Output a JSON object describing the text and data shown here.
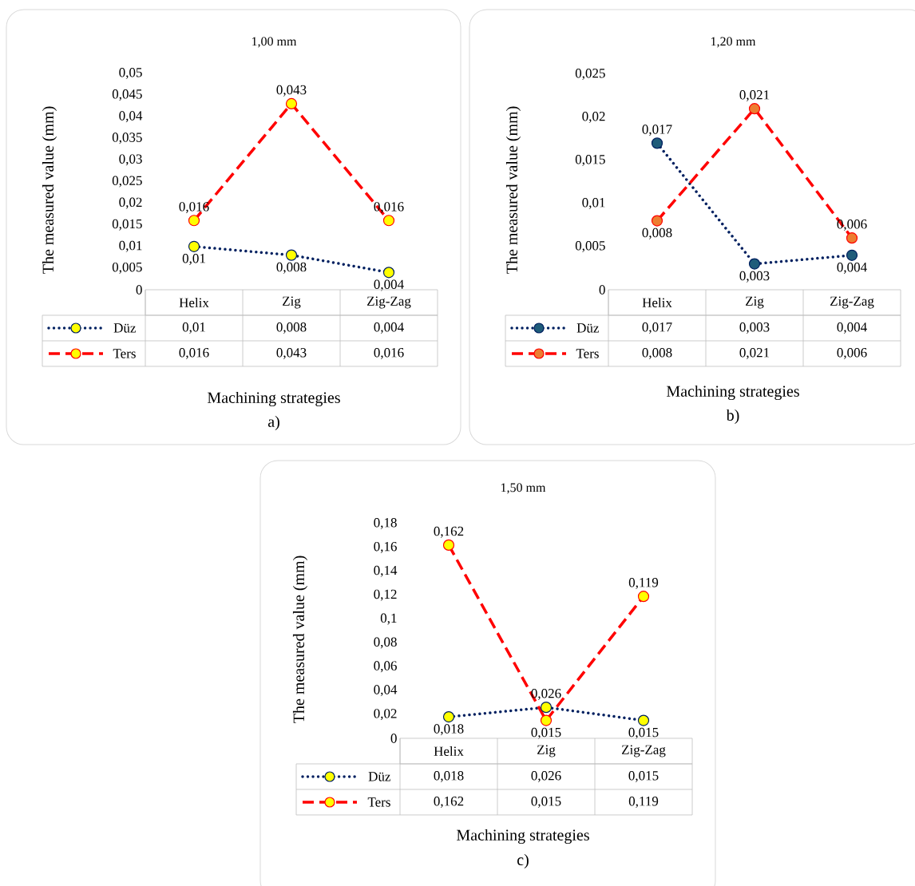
{
  "chart_data": [
    {
      "type": "line",
      "title": "1,00 mm",
      "xlabel": "Machining strategies",
      "ylabel": "The measured value (mm)",
      "annotations": [
        "a)"
      ],
      "categories": [
        "Helix",
        "Zig",
        "Zig-Zag"
      ],
      "marker": "circle",
      "legend": "bottom",
      "series": [
        {
          "name": "Düz",
          "color": "#002060",
          "colors": [
            "#ffff00",
            "#ffff00",
            "#ffff00"
          ],
          "line_style": "dotted",
          "values": [
            0.01,
            0.008,
            0.004
          ],
          "value_labels": [
            "0,01",
            "0,008",
            "0,004"
          ]
        },
        {
          "name": "Ters",
          "color": "#ff0000",
          "colors": [
            "#ffff00",
            "#ffff00",
            "#ffff00"
          ],
          "line_style": "dashed",
          "values": [
            0.016,
            0.043,
            0.016
          ],
          "value_labels": [
            "0,016",
            "0,043",
            "0,016"
          ]
        }
      ],
      "ylim": [
        0,
        0.05
      ],
      "yticks": [
        {
          "value": 0,
          "label": "0"
        },
        {
          "value": 0.005,
          "label": "0,005"
        },
        {
          "value": 0.01,
          "label": "0,01"
        },
        {
          "value": 0.015,
          "label": "0,015"
        },
        {
          "value": 0.02,
          "label": "0,02"
        },
        {
          "value": 0.025,
          "label": "0,025"
        },
        {
          "value": 0.03,
          "label": "0,03"
        },
        {
          "value": 0.035,
          "label": "0,035"
        },
        {
          "value": 0.04,
          "label": "0,04"
        },
        {
          "value": 0.045,
          "label": "0,045"
        },
        {
          "value": 0.05,
          "label": "0,05"
        }
      ]
    },
    {
      "type": "line",
      "title": "1,20 mm",
      "xlabel": "Machining strategies",
      "ylabel": "The measured value (mm)",
      "annotations": [
        "b)"
      ],
      "categories": [
        "Helix",
        "Zig",
        "Zig-Zag"
      ],
      "marker": "circle",
      "legend": "bottom",
      "series": [
        {
          "name": "Düz",
          "color": "#002060",
          "colors": [
            "#1f5c7a",
            "#1f5c7a",
            "#1f5c7a"
          ],
          "line_style": "dotted",
          "values": [
            0.017,
            0.003,
            0.004
          ],
          "value_labels": [
            "0,017",
            "0,003",
            "0,004"
          ]
        },
        {
          "name": "Ters",
          "color": "#ff0000",
          "colors": [
            "#ed7d31",
            "#ed7d31",
            "#ed7d31"
          ],
          "line_style": "dashed",
          "values": [
            0.008,
            0.021,
            0.006
          ],
          "value_labels": [
            "0,008",
            "0,021",
            "0,006"
          ]
        }
      ],
      "ylim": [
        0,
        0.025
      ],
      "yticks": [
        {
          "value": 0,
          "label": "0"
        },
        {
          "value": 0.005,
          "label": "0,005"
        },
        {
          "value": 0.01,
          "label": "0,01"
        },
        {
          "value": 0.015,
          "label": "0,015"
        },
        {
          "value": 0.02,
          "label": "0,02"
        },
        {
          "value": 0.025,
          "label": "0,025"
        }
      ]
    },
    {
      "type": "line",
      "title": "1,50 mm",
      "xlabel": "Machining strategies",
      "ylabel": "The measured value (mm)",
      "annotations": [
        "c)"
      ],
      "categories": [
        "Helix",
        "Zig",
        "Zig-Zag"
      ],
      "marker": "circle",
      "legend": "bottom",
      "series": [
        {
          "name": "Düz",
          "color": "#002060",
          "colors": [
            "#ffff00",
            "#ffff00",
            "#ffff00"
          ],
          "line_style": "dotted",
          "values": [
            0.018,
            0.026,
            0.015
          ],
          "value_labels": [
            "0,018",
            "0,026",
            "0,015"
          ]
        },
        {
          "name": "Ters",
          "color": "#ff0000",
          "colors": [
            "#ffff00",
            "#ffff00",
            "#ffff00"
          ],
          "line_style": "dashed",
          "values": [
            0.162,
            0.015,
            0.119
          ],
          "value_labels": [
            "0,162",
            "0,015",
            "0,119"
          ]
        }
      ],
      "ylim": [
        0,
        0.18
      ],
      "yticks": [
        {
          "value": 0,
          "label": "0"
        },
        {
          "value": 0.02,
          "label": "0,02"
        },
        {
          "value": 0.04,
          "label": "0,04"
        },
        {
          "value": 0.06,
          "label": "0,06"
        },
        {
          "value": 0.08,
          "label": "0,08"
        },
        {
          "value": 0.1,
          "label": "0,1"
        },
        {
          "value": 0.12,
          "label": "0,12"
        },
        {
          "value": 0.14,
          "label": "0,14"
        },
        {
          "value": 0.16,
          "label": "0,16"
        },
        {
          "value": 0.18,
          "label": "0,18"
        }
      ]
    }
  ]
}
